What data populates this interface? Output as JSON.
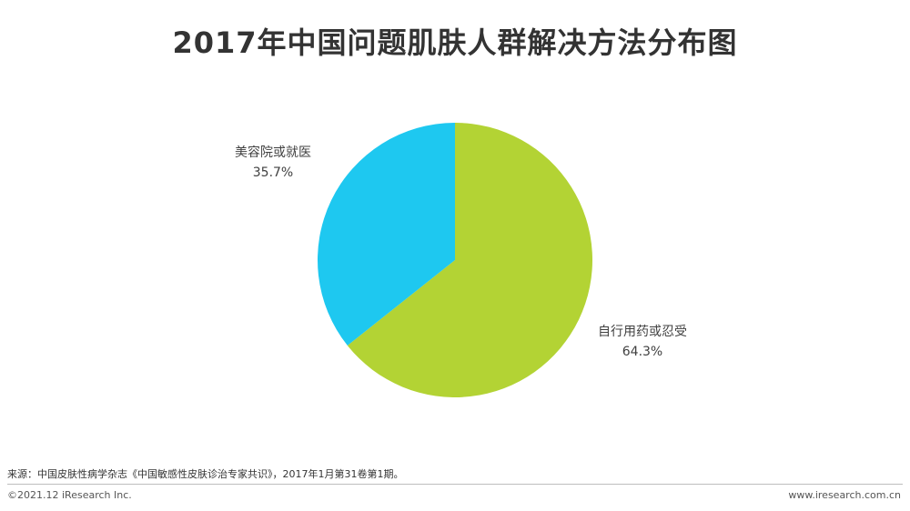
{
  "title": "2017年中国问题肌肤人群解决方法分布图",
  "chart_data": {
    "type": "pie",
    "title": "2017年中国问题肌肤人群解决方法分布图",
    "slices": [
      {
        "label": "自行用药或忍受",
        "value": 64.3,
        "value_label": "64.3%",
        "color": "#b3d334"
      },
      {
        "label": "美容院或就医",
        "value": 35.7,
        "value_label": "35.7%",
        "color": "#1ec8f0"
      }
    ],
    "start_angle_deg": 0,
    "direction": "clockwise"
  },
  "footer": {
    "source": "来源：中国皮肤性病学杂志《中国敏感性皮肤诊治专家共识》，2017年1月第31卷第1期。",
    "copyright": "©2021.12 iResearch Inc.",
    "website": "www.iresearch.com.cn"
  }
}
